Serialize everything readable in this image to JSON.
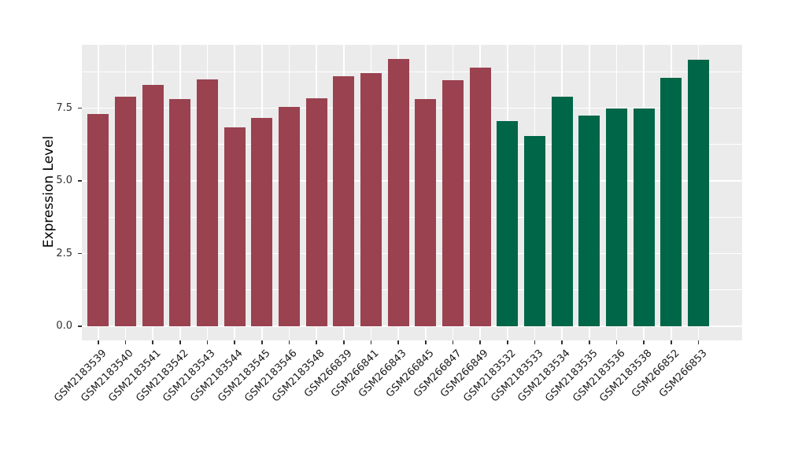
{
  "chart_data": {
    "type": "bar",
    "title": "",
    "xlabel": "",
    "ylabel": "Expression Level",
    "categories": [
      "GSM2183539",
      "GSM2183540",
      "GSM2183541",
      "GSM2183542",
      "GSM2183543",
      "GSM2183544",
      "GSM2183545",
      "GSM2183546",
      "GSM2183548",
      "GSM266839",
      "GSM266841",
      "GSM266843",
      "GSM266845",
      "GSM266847",
      "GSM266849",
      "GSM2183532",
      "GSM2183533",
      "GSM2183534",
      "GSM2183535",
      "GSM2183536",
      "GSM2183538",
      "GSM266852",
      "GSM266853"
    ],
    "values": [
      7.3,
      7.9,
      8.3,
      7.8,
      8.5,
      6.85,
      7.15,
      7.55,
      7.85,
      8.6,
      8.7,
      9.2,
      7.8,
      8.45,
      8.9,
      7.05,
      6.55,
      7.9,
      7.25,
      7.5,
      7.5,
      8.55,
      9.15
    ],
    "groups": [
      "maroon",
      "maroon",
      "maroon",
      "maroon",
      "maroon",
      "maroon",
      "maroon",
      "maroon",
      "maroon",
      "maroon",
      "maroon",
      "maroon",
      "maroon",
      "maroon",
      "maroon",
      "green",
      "green",
      "green",
      "green",
      "green",
      "green",
      "green",
      "green"
    ],
    "group_colors": {
      "maroon": "#9A4250",
      "green": "#006648"
    },
    "ytick_values": [
      0,
      2.5,
      5.0,
      7.5
    ],
    "ytick_labels": [
      "0.0",
      "2.5",
      "5.0",
      "7.5"
    ],
    "yminor_values": [
      1.25,
      3.75,
      6.25,
      8.75
    ],
    "ylim": [
      -0.49,
      9.68
    ],
    "grid": "on",
    "legend": "none",
    "colors": {
      "panel_background": "#EBEBEB",
      "gridline": "#FFFFFF",
      "tick": "#333333",
      "figure_background": "#FFFFFF"
    }
  }
}
